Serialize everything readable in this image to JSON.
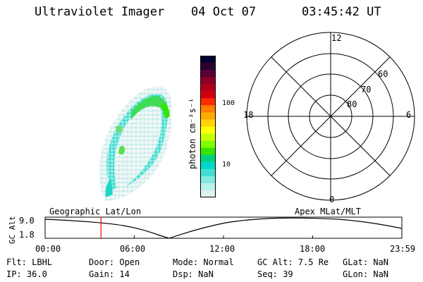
{
  "header": {
    "instrument": "Ultraviolet Imager",
    "date": "04 Oct 07",
    "time": "03:45:42 UT"
  },
  "colorbar": {
    "unit": "photon cm⁻²s⁻¹",
    "ticks": [
      "100",
      "10"
    ],
    "colors": [
      "#000033",
      "#2a0033",
      "#5a0033",
      "#8a0022",
      "#b00018",
      "#d00010",
      "#ff2a00",
      "#ff7f00",
      "#ffaa00",
      "#ffd400",
      "#ffff00",
      "#c8ff00",
      "#7fff00",
      "#33e400",
      "#00d080",
      "#00d8c8",
      "#40e0d0",
      "#80e8e0",
      "#b8f0ec",
      "#e0f4f2"
    ]
  },
  "polar_grid": {
    "mlt_labels": [
      "12",
      "18",
      "6",
      "0"
    ],
    "mlat_labels": [
      "60",
      "70",
      "80"
    ]
  },
  "timeline": {
    "ylabel": "GC Alt",
    "y_ticks": [
      "9.0",
      "1.8"
    ],
    "left_title": "Geographic Lat/Lon",
    "right_title": "Apex MLat/MLT",
    "x_ticks": [
      "00:00",
      "06:00",
      "12:00",
      "18:00",
      "23:59"
    ],
    "current_time_hours": 3.76
  },
  "info": {
    "flt": "Flt: LBHL",
    "ip": "IP: 36.0",
    "door": "Door: Open",
    "gain": "Gain: 14",
    "mode": "Mode: Normal",
    "dsp": "Dsp:     NaN",
    "gcalt": "GC Alt: 7.5 Re",
    "seq": "Seq: 39",
    "glat": "GLat:     NaN",
    "glon": "GLon:     NaN"
  }
}
